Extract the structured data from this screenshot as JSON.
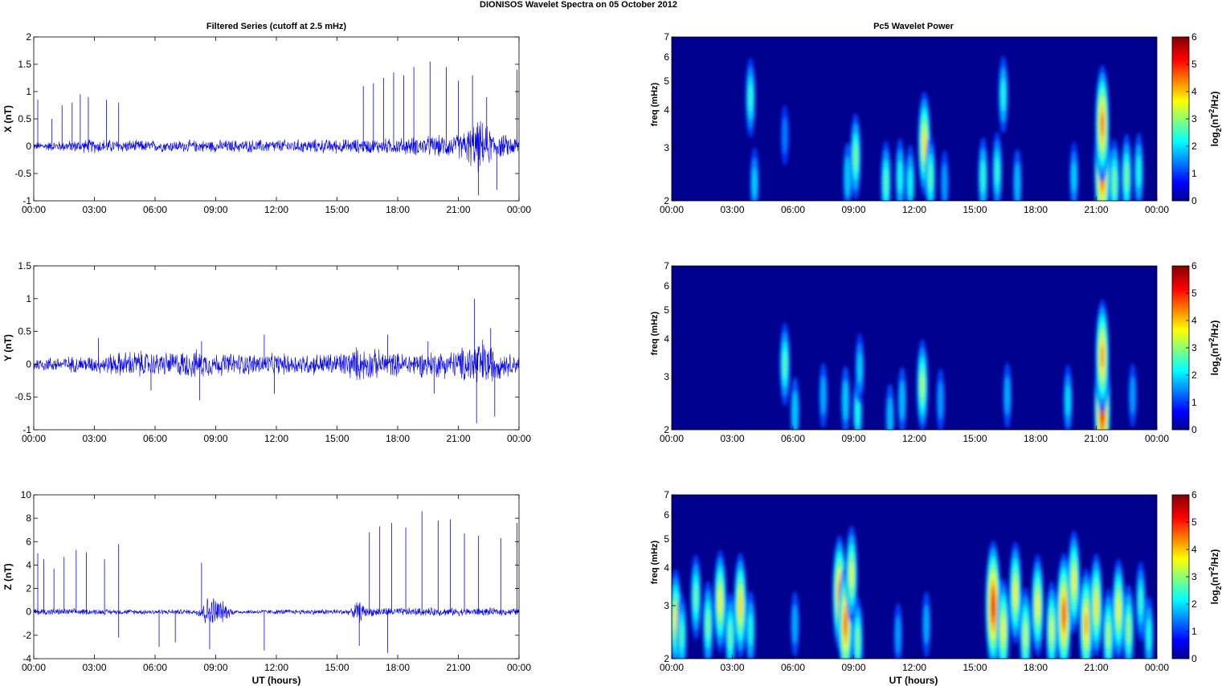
{
  "figure": {
    "suptitle": "DIONISOS Wavelet Spectra on 05 October   2012",
    "left_title": "Filtered Series (cutoff at 2.5 mHz)",
    "right_title": "Pc5 Wavelet Power",
    "xlabel": "UT (hours)"
  },
  "colors": {
    "trace": "#0000ff",
    "spectrogram_background": "#00008f",
    "colormap": "jet"
  },
  "chart_data": [
    {
      "type": "line",
      "panel": "X",
      "ylabel": "X (nT)",
      "ylim": [
        -1,
        2
      ],
      "yticks": [
        "-1",
        "-0.5",
        "0",
        "0.5",
        "1",
        "1.5",
        "2"
      ],
      "xlim": [
        0,
        24
      ],
      "xticks": [
        "00:00",
        "03:00",
        "06:00",
        "09:00",
        "12:00",
        "15:00",
        "18:00",
        "21:00",
        "00:00"
      ],
      "noise_envelope": {
        "hours": [
          0,
          3,
          6,
          9,
          12,
          15,
          16,
          18,
          21,
          22,
          23,
          24
        ],
        "amplitude": [
          0.08,
          0.15,
          0.12,
          0.13,
          0.14,
          0.15,
          0.15,
          0.17,
          0.25,
          0.55,
          0.25,
          0.2
        ]
      },
      "spikes": [
        {
          "x": 0.2,
          "y": 0.85
        },
        {
          "x": 0.9,
          "y": 0.5
        },
        {
          "x": 1.4,
          "y": 0.75
        },
        {
          "x": 1.9,
          "y": 0.8
        },
        {
          "x": 2.3,
          "y": 0.95
        },
        {
          "x": 2.7,
          "y": 0.9
        },
        {
          "x": 3.6,
          "y": 0.85
        },
        {
          "x": 4.2,
          "y": 0.8
        },
        {
          "x": 16.3,
          "y": 1.1
        },
        {
          "x": 16.8,
          "y": 1.15
        },
        {
          "x": 17.3,
          "y": 1.25
        },
        {
          "x": 17.8,
          "y": 1.35
        },
        {
          "x": 18.3,
          "y": 1.3
        },
        {
          "x": 18.8,
          "y": 1.45
        },
        {
          "x": 19.6,
          "y": 1.55
        },
        {
          "x": 20.4,
          "y": 1.45
        },
        {
          "x": 21.0,
          "y": 1.2
        },
        {
          "x": 21.7,
          "y": 1.3
        },
        {
          "x": 22.4,
          "y": 0.9
        },
        {
          "x": 23.9,
          "y": 1.4
        },
        {
          "x": 22.0,
          "y": -0.9
        },
        {
          "x": 22.9,
          "y": -0.8
        }
      ]
    },
    {
      "type": "line",
      "panel": "Y",
      "ylabel": "Y (nT)",
      "ylim": [
        -1,
        1.5
      ],
      "yticks": [
        "-1",
        "-0.5",
        "0",
        "0.5",
        "1",
        "1.5"
      ],
      "xlim": [
        0,
        24
      ],
      "xticks": [
        "00:00",
        "03:00",
        "06:00",
        "09:00",
        "12:00",
        "15:00",
        "18:00",
        "21:00",
        "00:00"
      ],
      "noise_envelope": {
        "hours": [
          0,
          3,
          5,
          6,
          8,
          9,
          12,
          15,
          16,
          18,
          21,
          22,
          23,
          24
        ],
        "amplitude": [
          0.12,
          0.15,
          0.25,
          0.2,
          0.25,
          0.2,
          0.18,
          0.2,
          0.3,
          0.2,
          0.25,
          0.5,
          0.25,
          0.15
        ]
      },
      "spikes": [
        {
          "x": 3.2,
          "y": 0.4
        },
        {
          "x": 8.3,
          "y": 0.35
        },
        {
          "x": 11.4,
          "y": 0.45
        },
        {
          "x": 17.5,
          "y": 0.45
        },
        {
          "x": 19.5,
          "y": 0.35
        },
        {
          "x": 21.8,
          "y": 1.0
        },
        {
          "x": 22.6,
          "y": 0.55
        },
        {
          "x": 8.2,
          "y": -0.55
        },
        {
          "x": 11.9,
          "y": -0.45
        },
        {
          "x": 19.8,
          "y": -0.45
        },
        {
          "x": 21.9,
          "y": -0.9
        },
        {
          "x": 22.8,
          "y": -0.8
        },
        {
          "x": 5.8,
          "y": -0.4
        }
      ]
    },
    {
      "type": "line",
      "panel": "Z",
      "ylabel": "Z (nT)",
      "ylim": [
        -4,
        10
      ],
      "yticks": [
        "-4",
        "-2",
        "0",
        "2",
        "4",
        "6",
        "8",
        "10"
      ],
      "xlim": [
        0,
        24
      ],
      "xticks": [
        "00:00",
        "03:00",
        "06:00",
        "09:00",
        "12:00",
        "15:00",
        "18:00",
        "21:00",
        "00:00"
      ],
      "xlabel": "UT (hours)",
      "noise_envelope": {
        "hours": [
          0,
          4,
          8,
          8.5,
          9,
          9.7,
          10,
          15.7,
          16,
          16.5,
          18,
          21,
          24
        ],
        "amplitude": [
          0.35,
          0.25,
          0.25,
          1.4,
          1.6,
          0.5,
          0.2,
          0.3,
          1.2,
          0.45,
          0.4,
          0.4,
          0.35
        ]
      },
      "spikes": [
        {
          "x": 0.2,
          "y": 5.0
        },
        {
          "x": 0.5,
          "y": 4.5
        },
        {
          "x": 1.0,
          "y": 3.7
        },
        {
          "x": 1.5,
          "y": 4.7
        },
        {
          "x": 2.1,
          "y": 5.3
        },
        {
          "x": 2.6,
          "y": 5.1
        },
        {
          "x": 3.5,
          "y": 4.5
        },
        {
          "x": 4.2,
          "y": 5.8
        },
        {
          "x": 8.3,
          "y": 4.2
        },
        {
          "x": 16.6,
          "y": 6.8
        },
        {
          "x": 17.1,
          "y": 7.3
        },
        {
          "x": 17.7,
          "y": 7.6
        },
        {
          "x": 18.4,
          "y": 7.2
        },
        {
          "x": 19.2,
          "y": 8.6
        },
        {
          "x": 20.0,
          "y": 7.8
        },
        {
          "x": 20.6,
          "y": 7.9
        },
        {
          "x": 21.3,
          "y": 6.7
        },
        {
          "x": 22.0,
          "y": 6.5
        },
        {
          "x": 23.1,
          "y": 6.3
        },
        {
          "x": 23.9,
          "y": 7.6
        },
        {
          "x": 4.2,
          "y": -2.2
        },
        {
          "x": 6.2,
          "y": -3.0
        },
        {
          "x": 7.0,
          "y": -2.6
        },
        {
          "x": 8.7,
          "y": -3.2
        },
        {
          "x": 11.4,
          "y": -3.3
        },
        {
          "x": 17.5,
          "y": -3.5
        },
        {
          "x": 16.1,
          "y": -2.9
        }
      ]
    },
    {
      "type": "heatmap",
      "panel": "X power",
      "title": "Pc5 Wavelet Power",
      "ylabel": "freq (mHz)",
      "yscale": "log",
      "ylim": [
        2,
        7
      ],
      "yticks": [
        "2",
        "3",
        "4",
        "5",
        "6",
        "7"
      ],
      "xlim": [
        0,
        24
      ],
      "xticks": [
        "00:00",
        "03:00",
        "06:00",
        "09:00",
        "12:00",
        "15:00",
        "18:00",
        "21:00",
        "00:00"
      ],
      "colorbar_label": "log2(nT^2/Hz)",
      "clim": [
        0,
        6
      ],
      "colorbar_ticks": [
        "0",
        "1",
        "2",
        "3",
        "4",
        "5",
        "6"
      ],
      "blobs": [
        {
          "t": 3.9,
          "f": 4.4,
          "v": 2.2
        },
        {
          "t": 4.1,
          "f": 2.3,
          "v": 1.6
        },
        {
          "t": 5.6,
          "f": 3.3,
          "v": 1.0
        },
        {
          "t": 8.7,
          "f": 2.4,
          "v": 1.5
        },
        {
          "t": 9.1,
          "f": 2.8,
          "v": 2.6
        },
        {
          "t": 10.6,
          "f": 2.3,
          "v": 2.4
        },
        {
          "t": 11.3,
          "f": 2.4,
          "v": 2.0
        },
        {
          "t": 11.8,
          "f": 2.3,
          "v": 1.9
        },
        {
          "t": 12.5,
          "f": 3.1,
          "v": 3.7
        },
        {
          "t": 12.8,
          "f": 2.4,
          "v": 2.4
        },
        {
          "t": 13.5,
          "f": 2.3,
          "v": 1.2
        },
        {
          "t": 15.4,
          "f": 2.4,
          "v": 2.1
        },
        {
          "t": 16.1,
          "f": 2.5,
          "v": 2.2
        },
        {
          "t": 16.4,
          "f": 4.5,
          "v": 2.0
        },
        {
          "t": 17.1,
          "f": 2.3,
          "v": 1.4
        },
        {
          "t": 19.9,
          "f": 2.4,
          "v": 1.6
        },
        {
          "t": 21.3,
          "f": 2.6,
          "v": 5.6
        },
        {
          "t": 21.3,
          "f": 3.6,
          "v": 4.5
        },
        {
          "t": 21.9,
          "f": 2.3,
          "v": 2.6
        },
        {
          "t": 22.5,
          "f": 2.4,
          "v": 2.6
        },
        {
          "t": 23.1,
          "f": 2.5,
          "v": 2.0
        }
      ]
    },
    {
      "type": "heatmap",
      "panel": "Y power",
      "ylabel": "freq (mHz)",
      "yscale": "log",
      "ylim": [
        2,
        7
      ],
      "yticks": [
        "2",
        "3",
        "4",
        "5",
        "6",
        "7"
      ],
      "xlim": [
        0,
        24
      ],
      "xticks": [
        "00:00",
        "03:00",
        "06:00",
        "09:00",
        "12:00",
        "15:00",
        "18:00",
        "21:00",
        "00:00"
      ],
      "colorbar_label": "log2(nT^2/Hz)",
      "clim": [
        0,
        6
      ],
      "colorbar_ticks": [
        "0",
        "1",
        "2",
        "3",
        "4",
        "5",
        "6"
      ],
      "blobs": [
        {
          "t": 5.6,
          "f": 3.3,
          "v": 2.4
        },
        {
          "t": 6.1,
          "f": 2.3,
          "v": 1.5
        },
        {
          "t": 7.5,
          "f": 2.6,
          "v": 1.3
        },
        {
          "t": 8.6,
          "f": 2.5,
          "v": 1.5
        },
        {
          "t": 9.2,
          "f": 2.3,
          "v": 2.0
        },
        {
          "t": 9.3,
          "f": 3.2,
          "v": 1.6
        },
        {
          "t": 10.8,
          "f": 2.2,
          "v": 1.4
        },
        {
          "t": 11.4,
          "f": 2.5,
          "v": 1.4
        },
        {
          "t": 12.4,
          "f": 2.8,
          "v": 3.0
        },
        {
          "t": 13.3,
          "f": 2.5,
          "v": 1.2
        },
        {
          "t": 16.6,
          "f": 2.6,
          "v": 1.3
        },
        {
          "t": 19.6,
          "f": 2.5,
          "v": 1.7
        },
        {
          "t": 21.3,
          "f": 2.4,
          "v": 5.7
        },
        {
          "t": 21.3,
          "f": 3.5,
          "v": 4.3
        },
        {
          "t": 22.8,
          "f": 2.6,
          "v": 1.2
        }
      ]
    },
    {
      "type": "heatmap",
      "panel": "Z power",
      "ylabel": "freq (mHz)",
      "xlabel": "UT (hours)",
      "yscale": "log",
      "ylim": [
        2,
        7
      ],
      "yticks": [
        "2",
        "3",
        "4",
        "5",
        "6",
        "7"
      ],
      "xlim": [
        0,
        24
      ],
      "xticks": [
        "00:00",
        "03:00",
        "06:00",
        "09:00",
        "12:00",
        "15:00",
        "18:00",
        "21:00",
        "00:00"
      ],
      "colorbar_label": "log2(nT^2/Hz)",
      "clim": [
        0,
        6
      ],
      "colorbar_ticks": [
        "0",
        "1",
        "2",
        "3",
        "4",
        "5",
        "6"
      ],
      "blobs": [
        {
          "t": 0.2,
          "f": 2.7,
          "v": 3.5
        },
        {
          "t": 0.5,
          "f": 2.4,
          "v": 2.3
        },
        {
          "t": 1.2,
          "f": 3.2,
          "v": 2.5
        },
        {
          "t": 1.8,
          "f": 2.6,
          "v": 2.6
        },
        {
          "t": 2.4,
          "f": 3.1,
          "v": 3.6
        },
        {
          "t": 2.9,
          "f": 2.4,
          "v": 2.5
        },
        {
          "t": 3.4,
          "f": 3.0,
          "v": 3.8
        },
        {
          "t": 3.9,
          "f": 2.5,
          "v": 2.0
        },
        {
          "t": 6.1,
          "f": 2.6,
          "v": 1.3
        },
        {
          "t": 8.3,
          "f": 3.3,
          "v": 4.4
        },
        {
          "t": 8.6,
          "f": 2.6,
          "v": 4.6
        },
        {
          "t": 8.9,
          "f": 3.8,
          "v": 3.3
        },
        {
          "t": 9.2,
          "f": 2.3,
          "v": 2.6
        },
        {
          "t": 11.2,
          "f": 2.4,
          "v": 1.2
        },
        {
          "t": 12.6,
          "f": 2.6,
          "v": 1.3
        },
        {
          "t": 15.9,
          "f": 3.0,
          "v": 5.3
        },
        {
          "t": 16.4,
          "f": 2.5,
          "v": 3.6
        },
        {
          "t": 17.0,
          "f": 3.3,
          "v": 3.6
        },
        {
          "t": 17.5,
          "f": 2.4,
          "v": 3.1
        },
        {
          "t": 18.1,
          "f": 3.0,
          "v": 3.6
        },
        {
          "t": 18.8,
          "f": 2.5,
          "v": 3.2
        },
        {
          "t": 19.4,
          "f": 2.8,
          "v": 4.9
        },
        {
          "t": 19.9,
          "f": 3.6,
          "v": 3.6
        },
        {
          "t": 20.5,
          "f": 2.6,
          "v": 4.2
        },
        {
          "t": 21.0,
          "f": 3.0,
          "v": 3.7
        },
        {
          "t": 21.6,
          "f": 2.4,
          "v": 3.0
        },
        {
          "t": 22.1,
          "f": 2.9,
          "v": 3.6
        },
        {
          "t": 22.6,
          "f": 2.5,
          "v": 2.8
        },
        {
          "t": 23.2,
          "f": 3.1,
          "v": 2.2
        },
        {
          "t": 23.6,
          "f": 2.4,
          "v": 2.0
        }
      ]
    }
  ]
}
